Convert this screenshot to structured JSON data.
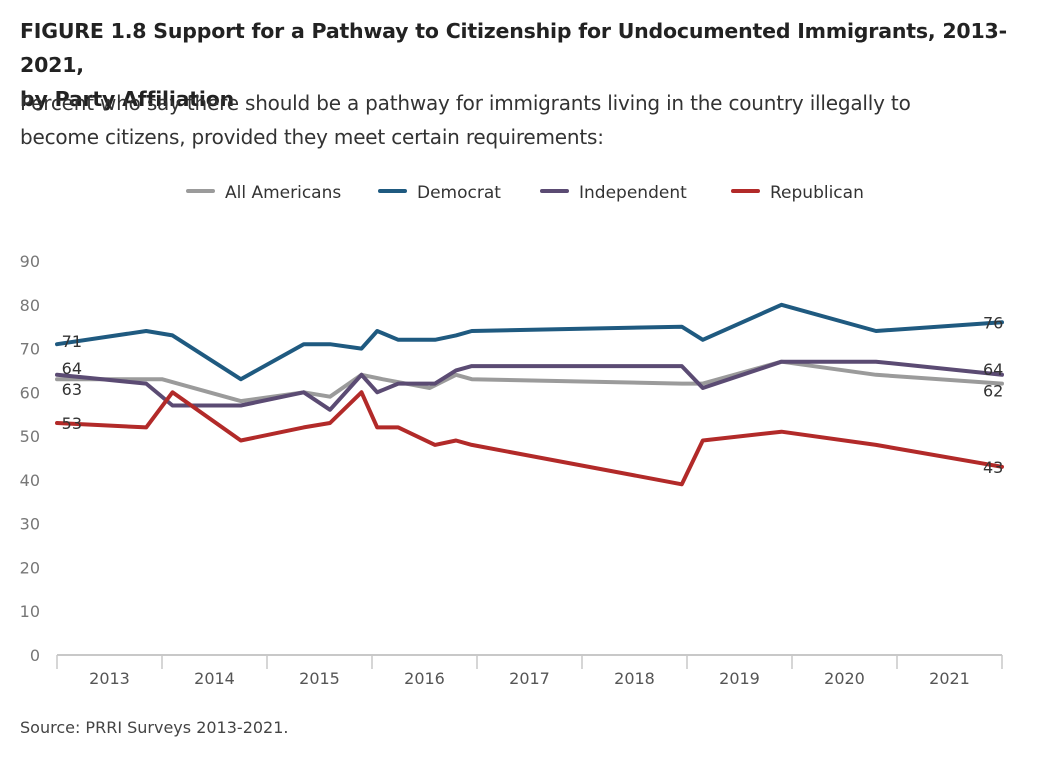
{
  "header": {
    "title_line1": "FIGURE 1.8 Support for a Pathway to Citizenship for Undocumented Immigrants, 2013-2021,",
    "title_line2": "by Party Affiliation",
    "subtitle_line1": "Percent who say there should be a pathway for immigrants living in the country illegally to",
    "subtitle_line2": "become citizens, provided they meet certain requirements:"
  },
  "source": "Source: PRRI Surveys 2013-2021.",
  "chart_data": {
    "type": "line",
    "ylim": [
      0,
      90
    ],
    "yticks": [
      0,
      10,
      20,
      30,
      40,
      50,
      60,
      70,
      80,
      90
    ],
    "xlim": [
      2012.5,
      2021.5
    ],
    "xticks": [
      "2013",
      "2014",
      "2015",
      "2016",
      "2017",
      "2018",
      "2019",
      "2020",
      "2021"
    ],
    "grid": false,
    "legend_position": "top",
    "series": [
      {
        "name": "All Americans",
        "color": "#9b9b9b",
        "x": [
          2012.5,
          2013.0,
          2013.5,
          2014.25,
          2014.85,
          2015.1,
          2015.4,
          2015.6,
          2016.05,
          2016.3,
          2016.45,
          2018.45,
          2018.65,
          2019.4,
          2020.3,
          2021.5
        ],
        "y": [
          63,
          63,
          63,
          58,
          60,
          59,
          64,
          63,
          61,
          64,
          63,
          62,
          62,
          67,
          64,
          62
        ]
      },
      {
        "name": "Democrat",
        "color": "#1f5a80",
        "x": [
          2012.5,
          2013.35,
          2013.6,
          2014.25,
          2014.85,
          2015.1,
          2015.4,
          2015.55,
          2015.75,
          2016.1,
          2016.3,
          2016.45,
          2018.45,
          2018.65,
          2019.4,
          2020.3,
          2021.5
        ],
        "y": [
          71,
          74,
          73,
          63,
          71,
          71,
          70,
          74,
          72,
          72,
          73,
          74,
          75,
          72,
          80,
          74,
          76
        ]
      },
      {
        "name": "Independent",
        "color": "#5b4b73",
        "x": [
          2012.5,
          2013.35,
          2013.6,
          2014.25,
          2014.85,
          2015.1,
          2015.4,
          2015.55,
          2015.75,
          2016.1,
          2016.3,
          2016.45,
          2018.45,
          2018.65,
          2019.4,
          2020.3,
          2021.5
        ],
        "y": [
          64,
          62,
          57,
          57,
          60,
          56,
          64,
          60,
          62,
          62,
          65,
          66,
          66,
          61,
          67,
          67,
          64
        ]
      },
      {
        "name": "Republican",
        "color": "#b22a29",
        "x": [
          2012.5,
          2013.35,
          2013.6,
          2014.25,
          2014.85,
          2015.1,
          2015.4,
          2015.55,
          2015.75,
          2016.1,
          2016.3,
          2016.45,
          2018.45,
          2018.65,
          2019.4,
          2020.3,
          2021.5
        ],
        "y": [
          53,
          52,
          60,
          49,
          52,
          53,
          60,
          52,
          52,
          48,
          49,
          48,
          39,
          49,
          51,
          48,
          43
        ]
      }
    ],
    "annotations": [
      {
        "series": "Democrat",
        "side": "start",
        "text": "71"
      },
      {
        "series": "All Americans",
        "side": "start",
        "text": "63"
      },
      {
        "series": "Independent",
        "side": "start",
        "text": "64"
      },
      {
        "series": "Republican",
        "side": "start",
        "text": "53"
      },
      {
        "series": "Democrat",
        "side": "end",
        "text": "76"
      },
      {
        "series": "Independent",
        "side": "end",
        "text": "64"
      },
      {
        "series": "All Americans",
        "side": "end",
        "text": "62"
      },
      {
        "series": "Republican",
        "side": "end",
        "text": "43"
      }
    ]
  }
}
